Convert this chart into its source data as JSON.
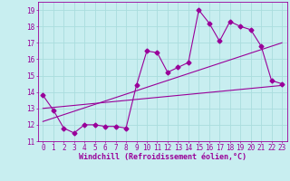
{
  "xlabel": "Windchill (Refroidissement éolien,°C)",
  "bg_color": "#c8eef0",
  "line_color": "#990099",
  "xlim": [
    -0.5,
    23.5
  ],
  "ylim": [
    11,
    19.5
  ],
  "yticks": [
    11,
    12,
    13,
    14,
    15,
    16,
    17,
    18,
    19
  ],
  "xticks": [
    0,
    1,
    2,
    3,
    4,
    5,
    6,
    7,
    8,
    9,
    10,
    11,
    12,
    13,
    14,
    15,
    16,
    17,
    18,
    19,
    20,
    21,
    22,
    23
  ],
  "series1_x": [
    0,
    1,
    2,
    3,
    4,
    5,
    6,
    7,
    8,
    9,
    10,
    11,
    12,
    13,
    14,
    15,
    16,
    17,
    18,
    19,
    20,
    21,
    22,
    23
  ],
  "series1_y": [
    13.8,
    12.9,
    11.8,
    11.5,
    12.0,
    12.0,
    11.9,
    11.9,
    11.8,
    14.4,
    16.5,
    16.4,
    15.2,
    15.5,
    15.8,
    19.0,
    18.2,
    17.1,
    18.3,
    18.0,
    17.8,
    16.8,
    14.7,
    14.5
  ],
  "series2_x": [
    0,
    23
  ],
  "series2_y": [
    13.0,
    14.4
  ],
  "series3_x": [
    0,
    23
  ],
  "series3_y": [
    12.2,
    17.0
  ],
  "markersize": 2.5,
  "linewidth": 0.8,
  "grid_color": "#aadddd",
  "tick_fontsize": 5.5,
  "xlabel_fontsize": 6.0
}
